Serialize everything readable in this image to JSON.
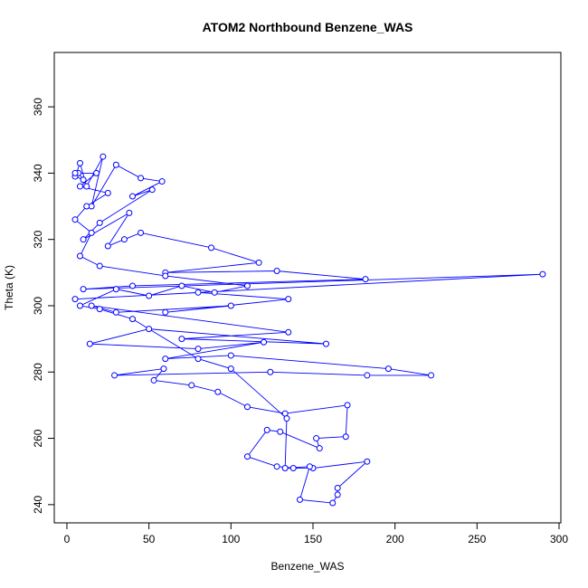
{
  "chart_data": {
    "type": "line",
    "title": "ATOM2 Northbound Benzene_WAS",
    "x_label": "Benzene_WAS",
    "y_label": "Theta (K)",
    "color": "#0000ff",
    "x": [
      7,
      10,
      5,
      8,
      12,
      22,
      15,
      30,
      45,
      58,
      40,
      52,
      20,
      10,
      38,
      25,
      35,
      45,
      88,
      117,
      60,
      128,
      182,
      40,
      10,
      290,
      5,
      80,
      135,
      60,
      100,
      30,
      15,
      135,
      70,
      158,
      50,
      14,
      80,
      120,
      60,
      100,
      196,
      222,
      183,
      124,
      29,
      59,
      53,
      76,
      92,
      110,
      133,
      171,
      170,
      152,
      154,
      130,
      122,
      110,
      128,
      138,
      150,
      183,
      165,
      165,
      162,
      142,
      148,
      133,
      134,
      100,
      80,
      40,
      20,
      8,
      30,
      50,
      70,
      90,
      110,
      60,
      20,
      8,
      15,
      5,
      12,
      25,
      8,
      18,
      5
    ],
    "values": [
      340,
      338,
      339,
      343,
      336,
      345,
      330,
      342.5,
      338.5,
      337.5,
      333,
      335,
      325,
      320,
      328,
      318,
      320,
      322,
      317.5,
      313,
      310,
      310.5,
      308,
      306,
      305,
      309.5,
      302,
      304,
      302,
      298,
      300,
      298,
      300,
      292,
      290,
      288.5,
      293,
      288.5,
      287,
      289,
      284,
      285,
      281,
      279,
      279,
      280,
      279,
      281,
      277.5,
      276,
      274,
      269.5,
      267.5,
      270,
      260.5,
      260,
      257,
      262,
      262.5,
      254.5,
      251.5,
      251,
      251,
      253,
      245,
      243,
      240.5,
      241.5,
      251.5,
      251,
      266,
      281,
      284,
      296,
      299,
      300,
      305,
      303,
      306,
      304,
      306,
      309,
      312,
      315,
      322,
      326,
      330,
      334,
      336,
      340,
      340
    ],
    "xlim": [
      -7.7,
      301.1
    ],
    "ylim": [
      234.5,
      376.4
    ],
    "xticks": [
      0,
      50,
      100,
      150,
      200,
      250,
      300
    ],
    "yticks": [
      240,
      260,
      280,
      300,
      320,
      340,
      360
    ]
  }
}
